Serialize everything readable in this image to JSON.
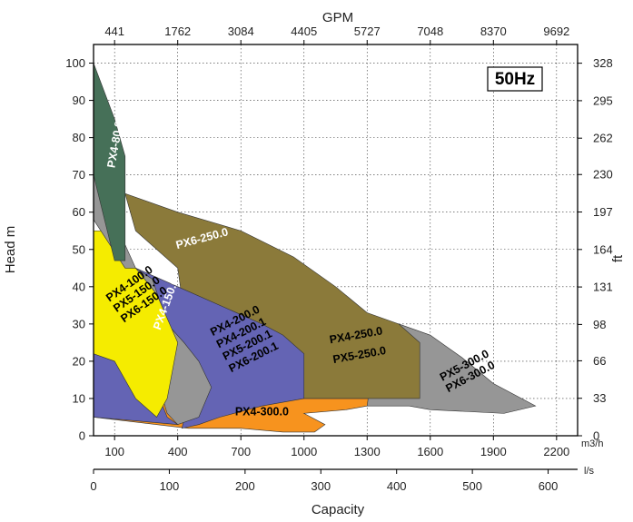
{
  "chart_data": {
    "type": "area",
    "title": "",
    "frequency_badge": "50Hz",
    "xlabel": "Capacity",
    "ylabel": "Head m",
    "y2label": "ft",
    "x2label": "GPM",
    "unit_m3h": "m3/h",
    "unit_ls": "l/s",
    "xlim_m3h": [
      0,
      2300
    ],
    "ylim_m": [
      0,
      105
    ],
    "grid": true,
    "ticks": {
      "m3h": [
        "100",
        "400",
        "700",
        "1000",
        "1300",
        "1600",
        "1900",
        "2200"
      ],
      "gpm": [
        "441",
        "1762",
        "3084",
        "4405",
        "5727",
        "7048",
        "8370",
        "9692"
      ],
      "ls": [
        "0",
        "100",
        "200",
        "300",
        "400",
        "500",
        "600"
      ],
      "head_m": [
        "0",
        "10",
        "20",
        "30",
        "40",
        "50",
        "60",
        "70",
        "80",
        "90",
        "100"
      ],
      "head_ft": [
        "0",
        "33",
        "66",
        "98",
        "131",
        "164",
        "197",
        "230",
        "262",
        "295",
        "328"
      ]
    },
    "series": [
      {
        "name": "PX4-300.0",
        "color": "#f7931e",
        "label": "PX4-300.0",
        "points": [
          [
            0,
            5
          ],
          [
            0,
            13
          ],
          [
            300,
            13
          ],
          [
            450,
            10
          ],
          [
            800,
            10
          ],
          [
            1000,
            10
          ],
          [
            1200,
            10
          ],
          [
            1400,
            10
          ],
          [
            1500,
            13
          ],
          [
            1800,
            8
          ],
          [
            1500,
            10
          ],
          [
            1200,
            7
          ],
          [
            1000,
            6
          ],
          [
            1100,
            3
          ],
          [
            1050,
            1
          ],
          [
            900,
            1
          ],
          [
            700,
            2
          ],
          [
            600,
            2
          ],
          [
            450,
            2
          ]
        ]
      },
      {
        "name": "PX5-300.0",
        "color": "#969696",
        "label": "PX5-300.0\nPX6-300.0",
        "points": [
          [
            1350,
            30
          ],
          [
            1450,
            30
          ],
          [
            1600,
            27
          ],
          [
            1750,
            21
          ],
          [
            1900,
            14
          ],
          [
            2100,
            8
          ],
          [
            1950,
            6
          ],
          [
            1600,
            7
          ],
          [
            1500,
            8
          ],
          [
            1300,
            8
          ]
        ]
      },
      {
        "name": "PX6-250.0",
        "color": "#8b7a3a",
        "label": "PX6-250.0",
        "points": [
          [
            0,
            13
          ],
          [
            100,
            13
          ],
          [
            300,
            10
          ],
          [
            400,
            14
          ],
          [
            400,
            19
          ],
          [
            450,
            25
          ],
          [
            400,
            45
          ],
          [
            200,
            55
          ],
          [
            150,
            65
          ],
          [
            400,
            60
          ],
          [
            700,
            55
          ],
          [
            950,
            48
          ],
          [
            1150,
            40
          ],
          [
            1300,
            33
          ],
          [
            1450,
            30
          ],
          [
            1550,
            25
          ],
          [
            1550,
            10
          ],
          [
            1000,
            10
          ],
          [
            700,
            15
          ],
          [
            300,
            10
          ],
          [
            100,
            10
          ]
        ]
      },
      {
        "name": "PX4-200.0",
        "color": "#6464b4",
        "label": "PX4-200.0\nPX4-200.1\nPX5-200.1\nPX6-200.1",
        "points": [
          [
            200,
            45
          ],
          [
            400,
            40
          ],
          [
            800,
            30
          ],
          [
            900,
            27
          ],
          [
            1000,
            22
          ],
          [
            1000,
            10
          ],
          [
            800,
            8
          ],
          [
            600,
            5
          ],
          [
            500,
            3
          ],
          [
            420,
            2
          ],
          [
            440,
            7
          ],
          [
            450,
            12
          ],
          [
            400,
            18
          ],
          [
            350,
            30
          ],
          [
            300,
            35
          ]
        ]
      },
      {
        "name": "PX4-150.0",
        "color": "#969696",
        "label": "PX4-150.0",
        "points": [
          [
            200,
            45
          ],
          [
            280,
            42
          ],
          [
            350,
            30
          ],
          [
            430,
            25
          ],
          [
            500,
            20
          ],
          [
            560,
            13
          ],
          [
            500,
            5
          ],
          [
            400,
            3
          ],
          [
            350,
            6
          ],
          [
            300,
            15
          ],
          [
            250,
            22
          ],
          [
            200,
            30
          ]
        ]
      },
      {
        "name": "PX4-100.0",
        "color": "#6464b4",
        "label": "",
        "points": [
          [
            0,
            30
          ],
          [
            100,
            25
          ],
          [
            200,
            20
          ],
          [
            300,
            12
          ],
          [
            350,
            5
          ],
          [
            400,
            3
          ],
          [
            0,
            5
          ]
        ]
      },
      {
        "name": "PX4-100.0",
        "color": "#f5ec00",
        "label": "PX4-100.0\nPX5-150.0\nPX6-150.0",
        "points": [
          [
            0,
            55
          ],
          [
            50,
            55
          ],
          [
            200,
            45
          ],
          [
            300,
            38
          ],
          [
            400,
            25
          ],
          [
            350,
            10
          ],
          [
            300,
            5
          ],
          [
            200,
            10
          ],
          [
            100,
            20
          ],
          [
            0,
            22
          ]
        ]
      },
      {
        "name": "PX4-80.0",
        "color": "#969696",
        "label": "",
        "points": [
          [
            0,
            70
          ],
          [
            200,
            45
          ],
          [
            150,
            45
          ],
          [
            0,
            58
          ]
        ]
      },
      {
        "name": "PX4-80.0",
        "color": "#467058",
        "label": "PX4-80.0",
        "points": [
          [
            0,
            100
          ],
          [
            100,
            85
          ],
          [
            150,
            75
          ],
          [
            150,
            47
          ],
          [
            100,
            47
          ],
          [
            0,
            70
          ]
        ]
      }
    ]
  }
}
